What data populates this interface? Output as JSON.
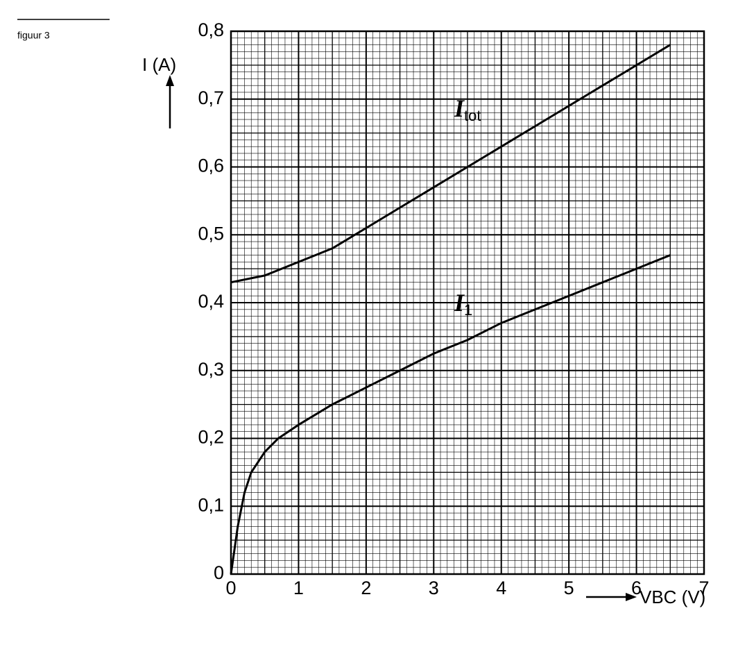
{
  "figure_label": "figuur 3",
  "chart_data": {
    "type": "line",
    "y_label": "I (A)",
    "x_label": "VBC (V)",
    "xlim": [
      0,
      7
    ],
    "xticks": [
      0,
      1,
      2,
      3,
      4,
      5,
      6,
      7
    ],
    "ylim": [
      0,
      0.8
    ],
    "yticks": [
      0,
      {
        "value": 0.1,
        "label": "0,1"
      },
      {
        "value": 0.2,
        "label": "0,2"
      },
      {
        "value": 0.3,
        "label": "0,3"
      },
      {
        "value": 0.4,
        "label": "0,4"
      },
      {
        "value": 0.5,
        "label": "0,5"
      },
      {
        "value": 0.6,
        "label": "0,6"
      },
      {
        "value": 0.7,
        "label": "0,7"
      },
      {
        "value": 0.8,
        "label": "0,8"
      }
    ],
    "grid": true,
    "series": [
      {
        "name": "Itot",
        "color": "#000000",
        "x": [
          0,
          0.5,
          1,
          1.5,
          2,
          2.5,
          3,
          3.5,
          4,
          4.5,
          5,
          5.5,
          6,
          6.5
        ],
        "values": [
          0.43,
          0.44,
          0.46,
          0.48,
          0.51,
          0.54,
          0.57,
          0.6,
          0.63,
          0.66,
          0.69,
          0.72,
          0.75,
          0.78
        ]
      },
      {
        "name": "I1",
        "color": "#000000",
        "x": [
          0,
          0.1,
          0.2,
          0.3,
          0.5,
          0.7,
          1,
          1.5,
          2,
          2.5,
          3,
          3.5,
          4,
          4.5,
          5,
          5.5,
          6,
          6.5
        ],
        "values": [
          0,
          0.07,
          0.12,
          0.15,
          0.18,
          0.2,
          0.22,
          0.25,
          0.275,
          0.3,
          0.325,
          0.345,
          0.37,
          0.39,
          0.41,
          0.43,
          0.45,
          0.47
        ]
      }
    ]
  }
}
